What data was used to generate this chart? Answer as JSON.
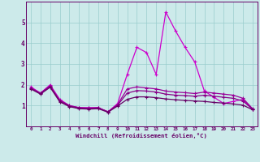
{
  "xlabel": "Windchill (Refroidissement éolien,°C)",
  "x": [
    0,
    1,
    2,
    3,
    4,
    5,
    6,
    7,
    8,
    9,
    10,
    11,
    12,
    13,
    14,
    15,
    16,
    17,
    18,
    19,
    20,
    21,
    22,
    23
  ],
  "line1": [
    1.9,
    1.6,
    2.0,
    1.3,
    1.0,
    0.9,
    0.9,
    0.9,
    0.7,
    1.1,
    2.5,
    3.8,
    3.55,
    2.5,
    5.5,
    4.6,
    3.8,
    3.1,
    1.7,
    1.4,
    1.1,
    1.2,
    1.3,
    0.8
  ],
  "line2": [
    1.85,
    1.6,
    1.95,
    1.25,
    1.0,
    0.9,
    0.88,
    0.9,
    0.7,
    1.05,
    1.8,
    1.9,
    1.85,
    1.8,
    1.7,
    1.65,
    1.62,
    1.58,
    1.65,
    1.6,
    1.55,
    1.5,
    1.35,
    0.85
  ],
  "line3": [
    1.82,
    1.58,
    1.92,
    1.22,
    0.98,
    0.88,
    0.86,
    0.88,
    0.7,
    1.02,
    1.6,
    1.72,
    1.7,
    1.65,
    1.55,
    1.5,
    1.48,
    1.45,
    1.5,
    1.45,
    1.4,
    1.35,
    1.22,
    0.82
  ],
  "line4": [
    1.8,
    1.55,
    1.88,
    1.18,
    0.95,
    0.85,
    0.83,
    0.85,
    0.68,
    0.98,
    1.3,
    1.42,
    1.42,
    1.38,
    1.32,
    1.28,
    1.25,
    1.22,
    1.2,
    1.15,
    1.12,
    1.08,
    1.02,
    0.8
  ],
  "line_colors": [
    "#cc00cc",
    "#990099",
    "#880088",
    "#660066"
  ],
  "bg_color": "#cceaea",
  "grid_color": "#99cccc",
  "axis_color": "#660066",
  "label_color": "#660066",
  "ylim": [
    0,
    6
  ],
  "yticks": [
    1,
    2,
    3,
    4,
    5
  ],
  "xticks": [
    0,
    1,
    2,
    3,
    4,
    5,
    6,
    7,
    8,
    9,
    10,
    11,
    12,
    13,
    14,
    15,
    16,
    17,
    18,
    19,
    20,
    21,
    22,
    23
  ],
  "figsize": [
    3.2,
    2.0
  ],
  "dpi": 100
}
